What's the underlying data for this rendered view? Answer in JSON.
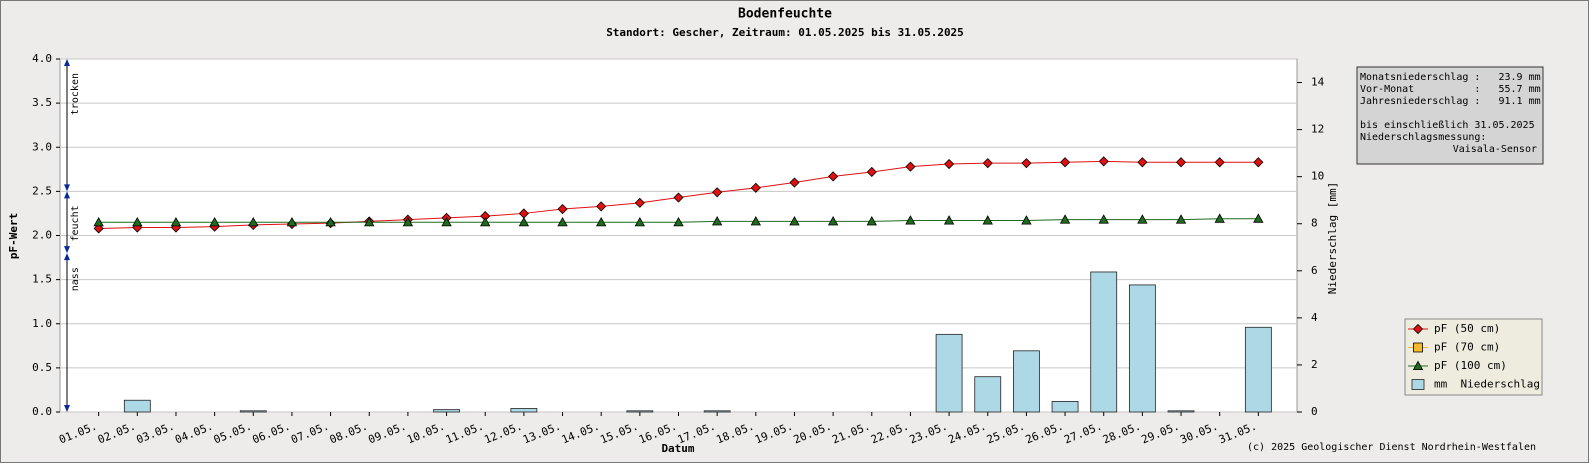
{
  "chart_data": {
    "type": "line",
    "title": "Bodenfeuchte",
    "subtitle": "Standort: Gescher, Zeitraum: 01.05.2025 bis 31.05.2025",
    "xlabel": "Datum",
    "ylabel": "pF-Wert",
    "y2label": "Niederschlag [mm]",
    "categories": [
      "01.05.",
      "02.05.",
      "03.05.",
      "04.05.",
      "05.05.",
      "06.05.",
      "07.05.",
      "08.05.",
      "09.05.",
      "10.05.",
      "11.05.",
      "12.05.",
      "13.05.",
      "14.05.",
      "15.05.",
      "16.05.",
      "17.05.",
      "18.05.",
      "19.05.",
      "20.05.",
      "21.05.",
      "22.05.",
      "23.05.",
      "24.05.",
      "25.05.",
      "26.05.",
      "27.05.",
      "28.05.",
      "29.05.",
      "30.05.",
      "31.05."
    ],
    "ylim": [
      0,
      4
    ],
    "yticks": [
      {
        "value": 0,
        "label": "0.0"
      },
      0.5,
      {
        "value": 1,
        "label": "1.0"
      },
      1.5,
      {
        "value": 2,
        "label": "2.0"
      },
      2.5,
      {
        "value": 3,
        "label": "3.0"
      },
      3.5,
      {
        "value": 4,
        "label": "4.0"
      }
    ],
    "y2lim": [
      0,
      15
    ],
    "y2ticks": [
      0,
      2,
      4,
      6,
      8,
      10,
      12,
      14
    ],
    "grid": true,
    "legend": "lower right",
    "series": [
      {
        "name": "pF (50 cm)",
        "type": "line",
        "marker": "diamond",
        "color": "#e01010",
        "values": [
          2.08,
          2.09,
          2.09,
          2.1,
          2.12,
          2.13,
          2.14,
          2.16,
          2.18,
          2.2,
          2.22,
          2.25,
          2.3,
          2.33,
          2.37,
          2.43,
          2.49,
          2.54,
          2.6,
          2.67,
          2.72,
          2.78,
          2.81,
          2.82,
          2.82,
          2.83,
          2.84,
          2.83,
          2.83,
          2.83,
          2.83
        ]
      },
      {
        "name": "pF (70 cm)",
        "type": "line",
        "marker": "square",
        "color": "#f5b82e",
        "values": [
          null,
          null,
          null,
          null,
          null,
          null,
          null,
          null,
          null,
          null,
          null,
          null,
          null,
          null,
          null,
          null,
          null,
          null,
          null,
          null,
          null,
          null,
          null,
          null,
          null,
          null,
          null,
          null,
          null,
          null,
          null
        ]
      },
      {
        "name": "pF (100 cm)",
        "type": "line",
        "marker": "triangle",
        "color": "#1e6b1e",
        "values": [
          2.15,
          2.15,
          2.15,
          2.15,
          2.15,
          2.15,
          2.15,
          2.15,
          2.15,
          2.15,
          2.15,
          2.15,
          2.15,
          2.15,
          2.15,
          2.15,
          2.16,
          2.16,
          2.16,
          2.16,
          2.16,
          2.17,
          2.17,
          2.17,
          2.17,
          2.18,
          2.18,
          2.18,
          2.18,
          2.19,
          2.19
        ]
      },
      {
        "name": "mm  Niederschlag",
        "type": "bar",
        "axis": "y2",
        "color": "#add8e6",
        "values": [
          0,
          0.5,
          0,
          0,
          0.05,
          0,
          0,
          0,
          0,
          0.1,
          0,
          0.15,
          0,
          0,
          0.05,
          0,
          0.05,
          0,
          0,
          0,
          0,
          0,
          3.3,
          1.5,
          2.6,
          0.45,
          5.95,
          5.4,
          0.05,
          0,
          3.6
        ]
      }
    ],
    "zones": [
      {
        "label": "trocken",
        "from": 2.5,
        "to": 4
      },
      {
        "label": "feucht",
        "from": 1.8,
        "to": 2.5
      },
      {
        "label": "nass",
        "from": 0,
        "to": 1.8
      }
    ],
    "info": [
      "Monatsniederschlag :   23.9 mm",
      "Vor-Monat          :   55.7 mm",
      "Jahresniederschlag :   91.1 mm",
      "bis einschließlich 31.05.2025",
      "Niederschlagsmessung:",
      "Vaisala-Sensor"
    ],
    "credit": "(c) 2025 Geologischer Dienst Nordrhein-Westfalen"
  }
}
